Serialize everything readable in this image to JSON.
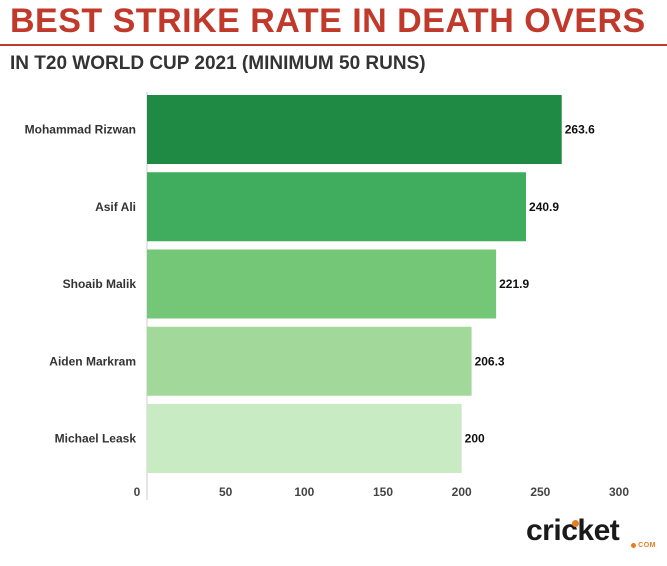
{
  "title": "BEST STRIKE RATE IN DEATH OVERS",
  "subtitle": "IN T20 WORLD CUP 2021 (MINIMUM 50 RUNS)",
  "colors": {
    "title": "#c0392b",
    "bars": [
      "#1e8a44",
      "#3fad5d",
      "#74c777",
      "#a2d99a",
      "#c9ebc3"
    ]
  },
  "chart_data": {
    "type": "bar",
    "orientation": "horizontal",
    "categories": [
      "Mohammad Rizwan",
      "Asif Ali",
      "Shoaib Malik",
      "Aiden Markram",
      "Michael Leask"
    ],
    "values": [
      263.6,
      240.9,
      221.9,
      206.3,
      200
    ],
    "value_labels": [
      "263.6",
      "240.9",
      "221.9",
      "206.3",
      "200"
    ],
    "xticks": [
      0,
      50,
      100,
      150,
      200,
      250,
      300
    ],
    "xlim": [
      0,
      300
    ],
    "grid": false
  },
  "logo": {
    "word": "cricket",
    "suffix": "COM"
  }
}
